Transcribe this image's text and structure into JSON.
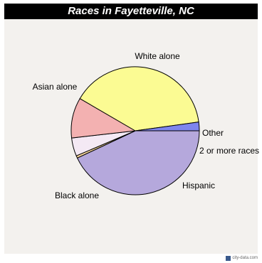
{
  "title": "Races in Fayetteville, NC",
  "watermark": "city-data.com",
  "chart_data": {
    "type": "pie",
    "title": "Races in Fayetteville, NC",
    "slices": [
      {
        "label": "White alone",
        "value": 43.0,
        "color": "#b5a8dc"
      },
      {
        "label": "Other",
        "value": 0.6,
        "color": "#f3d39b"
      },
      {
        "label": "2 or more races",
        "value": 4.6,
        "color": "#f4e9f4"
      },
      {
        "label": "Hispanic",
        "value": 10.2,
        "color": "#f3b1b1"
      },
      {
        "label": "Black alone",
        "value": 39.4,
        "color": "#fbfb93"
      },
      {
        "label": "Asian alone",
        "value": 2.2,
        "color": "#7e85ee"
      }
    ],
    "start_angle_deg": 0,
    "direction": "clockwise",
    "stroke_color": "#000000"
  }
}
